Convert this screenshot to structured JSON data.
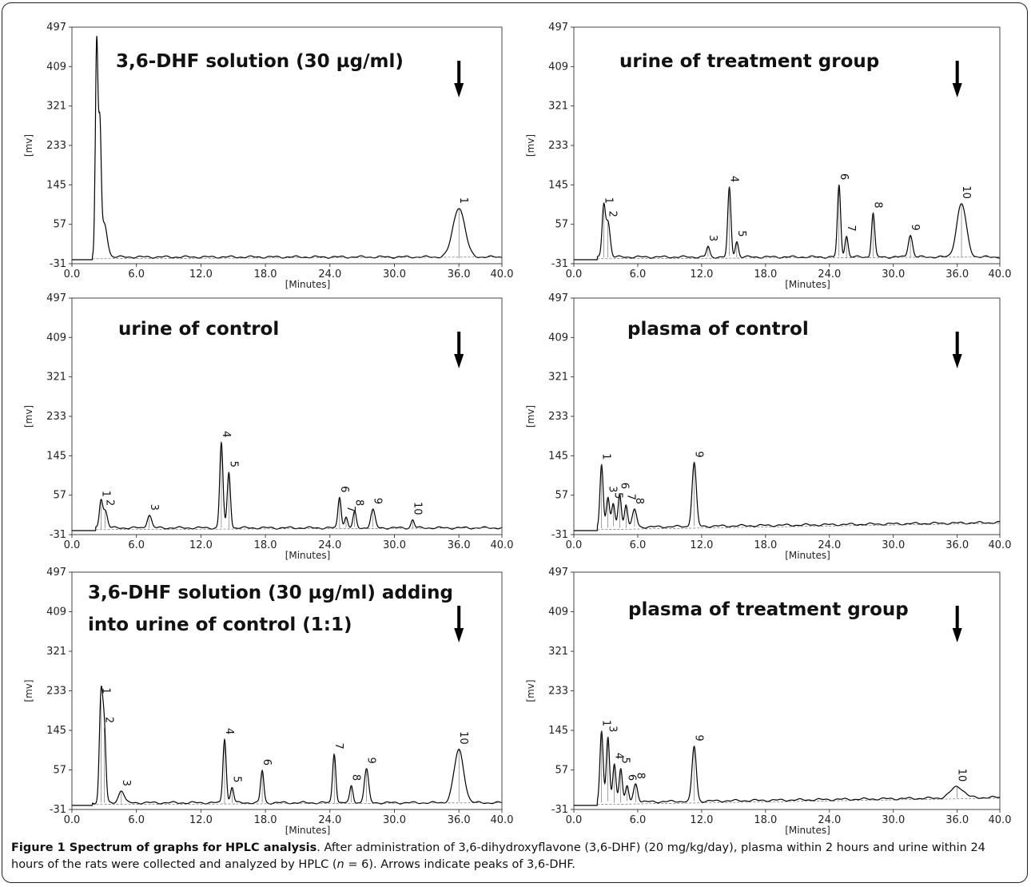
{
  "chart_data": [
    {
      "type": "line",
      "title": "3,6-DHF solution (30 µg/ml)",
      "title_lines": [
        "3,6-DHF solution (30 µg/ml)"
      ],
      "xlabel": "[Minutes]",
      "ylabel": "[mv]",
      "xlim": [
        0,
        40
      ],
      "ylim": [
        -31,
        497
      ],
      "xticks": [
        "0.0",
        "6.0",
        "12.0",
        "18.0",
        "24.0",
        "30.0",
        "36.0",
        "40.0"
      ],
      "yticks": [
        "-31",
        "57",
        "145",
        "233",
        "321",
        "409",
        "497"
      ],
      "arrow_at_x": 36,
      "peaks": [
        {
          "label": "",
          "x": 2.3,
          "y": 461,
          "w": 0.12
        },
        {
          "label": "",
          "x": 2.6,
          "y": 255,
          "w": 0.12
        },
        {
          "label": "",
          "x": 3.0,
          "y": 60,
          "w": 0.28
        },
        {
          "label": "1",
          "x": 36.0,
          "y": 92,
          "w": 0.55
        }
      ]
    },
    {
      "type": "line",
      "title": "urine of treatment group",
      "title_lines": [
        "urine of treatment group"
      ],
      "xlabel": "[Minutes]",
      "ylabel": "[mv]",
      "xlim": [
        0,
        40
      ],
      "ylim": [
        -31,
        497
      ],
      "xticks": [
        "0.0",
        "6.0",
        "12.0",
        "18.0",
        "24.0",
        "30.0",
        "36.0",
        "40.0"
      ],
      "yticks": [
        "-31",
        "57",
        "145",
        "233",
        "321",
        "409",
        "497"
      ],
      "arrow_at_x": 36,
      "peaks": [
        {
          "label": "1",
          "x": 2.8,
          "y": 92,
          "w": 0.15
        },
        {
          "label": "2",
          "x": 3.2,
          "y": 62,
          "w": 0.2
        },
        {
          "label": "3",
          "x": 12.6,
          "y": 8,
          "w": 0.15
        },
        {
          "label": "4",
          "x": 14.6,
          "y": 140,
          "w": 0.15
        },
        {
          "label": "5",
          "x": 15.3,
          "y": 18,
          "w": 0.15
        },
        {
          "label": "6",
          "x": 24.9,
          "y": 145,
          "w": 0.15
        },
        {
          "label": "7",
          "x": 25.6,
          "y": 30,
          "w": 0.15
        },
        {
          "label": "8",
          "x": 28.1,
          "y": 82,
          "w": 0.15
        },
        {
          "label": "9",
          "x": 31.6,
          "y": 32,
          "w": 0.2
        },
        {
          "label": "10",
          "x": 36.4,
          "y": 103,
          "w": 0.45
        }
      ]
    },
    {
      "type": "line",
      "title": "urine of control",
      "title_lines": [
        "urine of control"
      ],
      "xlabel": "[Minutes]",
      "ylabel": "[mv]",
      "xlim": [
        0,
        40
      ],
      "ylim": [
        -31,
        497
      ],
      "xticks": [
        "0.0",
        "6.0",
        "12.0",
        "18.0",
        "24.0",
        "30.0",
        "36.0",
        "40.0"
      ],
      "yticks": [
        "-31",
        "57",
        "145",
        "233",
        "321",
        "409",
        "497"
      ],
      "arrow_at_x": 36,
      "peaks": [
        {
          "label": "1",
          "x": 2.7,
          "y": 42,
          "w": 0.15
        },
        {
          "label": "2",
          "x": 3.1,
          "y": 22,
          "w": 0.2
        },
        {
          "label": "3",
          "x": 7.2,
          "y": 12,
          "w": 0.2
        },
        {
          "label": "4",
          "x": 13.9,
          "y": 175,
          "w": 0.15
        },
        {
          "label": "5",
          "x": 14.6,
          "y": 108,
          "w": 0.15
        },
        {
          "label": "6",
          "x": 24.9,
          "y": 52,
          "w": 0.15
        },
        {
          "label": "7",
          "x": 25.5,
          "y": 8,
          "w": 0.15
        },
        {
          "label": "8",
          "x": 26.3,
          "y": 22,
          "w": 0.15
        },
        {
          "label": "9",
          "x": 28.0,
          "y": 26,
          "w": 0.2
        },
        {
          "label": "10",
          "x": 31.7,
          "y": 2,
          "w": 0.15
        }
      ]
    },
    {
      "type": "line",
      "title": "plasma of control",
      "title_lines": [
        "plasma of control"
      ],
      "xlabel": "[Minutes]",
      "ylabel": "[mv]",
      "xlim": [
        0,
        40
      ],
      "ylim": [
        -31,
        497
      ],
      "xticks": [
        "0.0",
        "6.0",
        "12.0",
        "18.0",
        "24.0",
        "30.0",
        "36.0",
        "40.0"
      ],
      "yticks": [
        "-31",
        "57",
        "145",
        "233",
        "321",
        "409",
        "497"
      ],
      "arrow_at_x": 36,
      "peaks": [
        {
          "label": "1",
          "x": 2.6,
          "y": 125,
          "w": 0.15
        },
        {
          "label": "3",
          "x": 3.2,
          "y": 52,
          "w": 0.15
        },
        {
          "label": "5",
          "x": 3.7,
          "y": 38,
          "w": 0.15
        },
        {
          "label": "6",
          "x": 4.3,
          "y": 60,
          "w": 0.15
        },
        {
          "label": "7",
          "x": 4.9,
          "y": 35,
          "w": 0.15
        },
        {
          "label": "8",
          "x": 5.7,
          "y": 26,
          "w": 0.2
        },
        {
          "label": "9",
          "x": 11.3,
          "y": 130,
          "w": 0.2
        }
      ]
    },
    {
      "type": "line",
      "title": "3,6-DHF solution (30 µg/ml) adding into urine of control (1:1)",
      "title_lines": [
        "3,6-DHF solution (30 µg/ml) adding",
        "into urine of control (1:1)"
      ],
      "xlabel": "[Minutes]",
      "ylabel": "[mv]",
      "xlim": [
        0,
        40
      ],
      "ylim": [
        -31,
        497
      ],
      "xticks": [
        "0.0",
        "6.0",
        "12.0",
        "18.0",
        "24.0",
        "30.0",
        "36.0",
        "40.0"
      ],
      "yticks": [
        "-31",
        "57",
        "145",
        "233",
        "321",
        "409",
        "497"
      ],
      "arrow_at_x": 36,
      "peaks": [
        {
          "label": "1",
          "x": 2.7,
          "y": 215,
          "w": 0.15
        },
        {
          "label": "2",
          "x": 3.0,
          "y": 150,
          "w": 0.15
        },
        {
          "label": "3",
          "x": 4.6,
          "y": 10,
          "w": 0.25
        },
        {
          "label": "4",
          "x": 14.2,
          "y": 125,
          "w": 0.15
        },
        {
          "label": "5",
          "x": 14.9,
          "y": 18,
          "w": 0.15
        },
        {
          "label": "6",
          "x": 17.7,
          "y": 56,
          "w": 0.15
        },
        {
          "label": "7",
          "x": 24.4,
          "y": 92,
          "w": 0.15
        },
        {
          "label": "8",
          "x": 26.0,
          "y": 22,
          "w": 0.15
        },
        {
          "label": "9",
          "x": 27.4,
          "y": 60,
          "w": 0.2
        },
        {
          "label": "10",
          "x": 36.0,
          "y": 103,
          "w": 0.45
        }
      ]
    },
    {
      "type": "line",
      "title": "plasma of treatment group",
      "title_lines": [
        "plasma of treatment group"
      ],
      "xlabel": "[Minutes]",
      "ylabel": "[mv]",
      "xlim": [
        0,
        40
      ],
      "ylim": [
        -31,
        497
      ],
      "xticks": [
        "0.0",
        "6.0",
        "12.0",
        "18.0",
        "24.0",
        "30.0",
        "36.0",
        "40.0"
      ],
      "yticks": [
        "-31",
        "57",
        "145",
        "233",
        "321",
        "409",
        "497"
      ],
      "arrow_at_x": 36,
      "peaks": [
        {
          "label": "1",
          "x": 2.6,
          "y": 143,
          "w": 0.15
        },
        {
          "label": "3",
          "x": 3.2,
          "y": 130,
          "w": 0.15
        },
        {
          "label": "4",
          "x": 3.8,
          "y": 70,
          "w": 0.15
        },
        {
          "label": "5",
          "x": 4.4,
          "y": 60,
          "w": 0.15
        },
        {
          "label": "6",
          "x": 5.0,
          "y": 22,
          "w": 0.15
        },
        {
          "label": "8",
          "x": 5.8,
          "y": 26,
          "w": 0.2
        },
        {
          "label": "9",
          "x": 11.3,
          "y": 110,
          "w": 0.2
        },
        {
          "label": "10",
          "x": 36.0,
          "y": 20,
          "w": 0.6
        }
      ]
    }
  ],
  "caption": {
    "title": "Figure 1 Spectrum of graphs for HPLC analysis",
    "text_before_n": ". After administration of 3,6-dihydroxyflavone (3,6-DHF) (20 mg/kg/day), plasma within 2 hours and urine within 24 hours of the rats were collected and analyzed by HPLC (",
    "n_symbol": "n",
    "text_after_n": " = 6). Arrows indicate peaks of 3,6-DHF."
  }
}
